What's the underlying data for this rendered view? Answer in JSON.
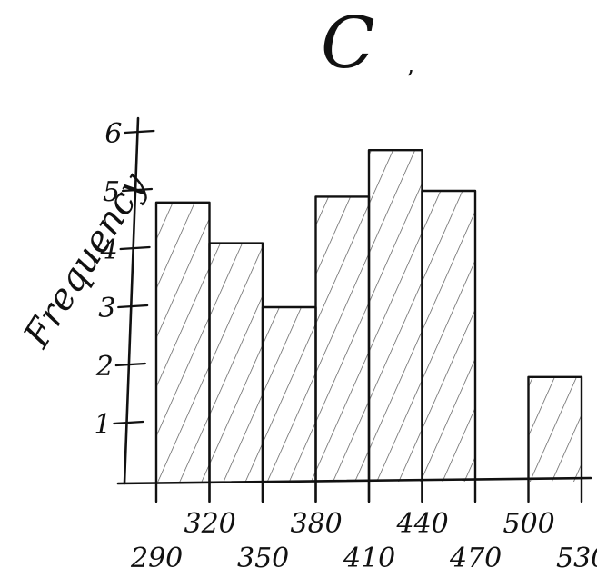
{
  "chart_data": {
    "type": "bar",
    "title": "C",
    "ylabel": "Frequency",
    "xlabel": "",
    "bin_edges": [
      290,
      320,
      350,
      380,
      410,
      440,
      470,
      500,
      530
    ],
    "values": [
      4.8,
      4.1,
      3.0,
      4.9,
      5.7,
      5.0,
      0,
      1.8
    ],
    "ylim": [
      0,
      6
    ],
    "yticks": [
      1,
      2,
      3,
      4,
      5,
      6
    ],
    "grid": false,
    "legend": "none",
    "style": {
      "ink": "#111111",
      "hatch": "#555555"
    }
  }
}
